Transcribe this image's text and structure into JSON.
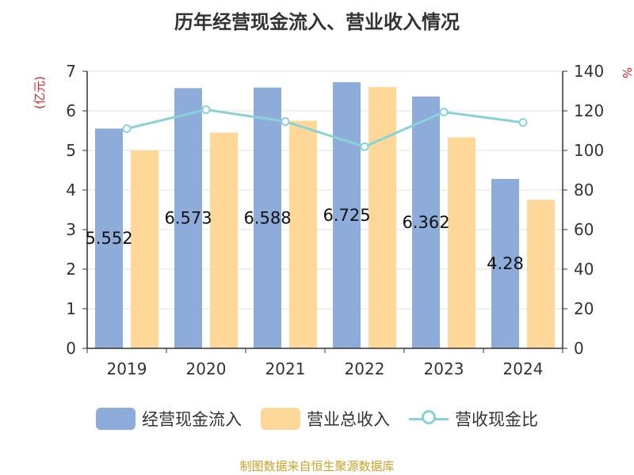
{
  "chart_data": {
    "type": "bar",
    "title": "历年经营现金流入、营业收入情况",
    "categories": [
      "2019",
      "2020",
      "2021",
      "2022",
      "2023",
      "2024"
    ],
    "series": [
      {
        "name": "经营现金流入",
        "type": "bar",
        "axis": "left",
        "color": "#8EACDA",
        "values": [
          5.552,
          6.573,
          6.588,
          6.725,
          6.362,
          4.28
        ],
        "labels": [
          "5.552",
          "6.573",
          "6.588",
          "6.725",
          "6.362",
          "4.28"
        ]
      },
      {
        "name": "营业总收入",
        "type": "bar",
        "axis": "left",
        "color": "#FFD899",
        "values": [
          5.0,
          5.45,
          5.75,
          6.6,
          5.33,
          3.75
        ]
      },
      {
        "name": "营收现金比",
        "type": "line",
        "axis": "right",
        "color": "#88D3D8",
        "values": [
          111,
          120.6,
          114.6,
          101.9,
          119.4,
          114.1
        ]
      }
    ],
    "y_left": {
      "label": "(亿元)",
      "min": 0,
      "max": 7,
      "ticks": [
        "0",
        "1",
        "2",
        "3",
        "4",
        "5",
        "6",
        "7"
      ]
    },
    "y_right": {
      "label": "%",
      "min": 0,
      "max": 140,
      "ticks": [
        "0",
        "20",
        "40",
        "60",
        "80",
        "100",
        "120",
        "140"
      ]
    },
    "grid": true,
    "legend_position": "bottom"
  },
  "source": "制图数据来自恒生聚源数据库"
}
